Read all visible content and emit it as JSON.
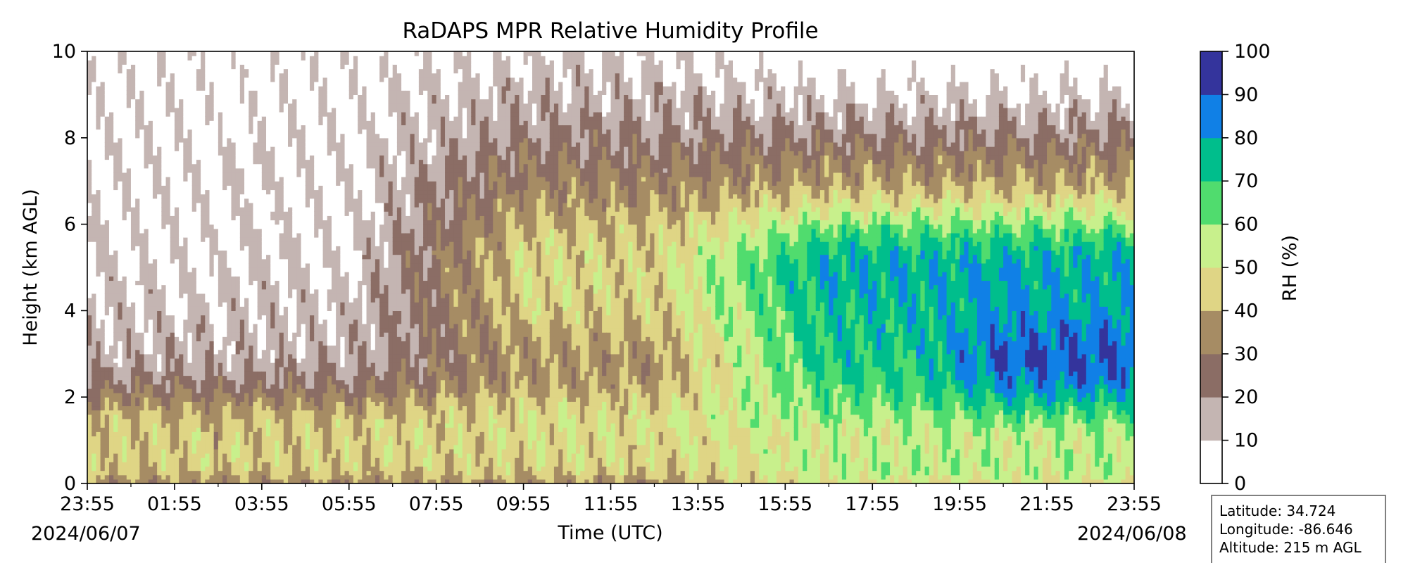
{
  "chart_data": {
    "type": "heatmap",
    "title": "RaDAPS MPR Relative Humidity Profile",
    "xlabel": "Time (UTC)",
    "ylabel": "Height (km AGL)",
    "xlim": [
      "2024-06-07 23:55",
      "2024-06-08 23:55"
    ],
    "ylim": [
      0,
      10
    ],
    "x_tick_labels": [
      "23:55",
      "01:55",
      "03:55",
      "05:55",
      "07:55",
      "09:55",
      "11:55",
      "13:55",
      "15:55",
      "17:55",
      "19:55",
      "21:55",
      "23:55"
    ],
    "y_tick_labels": [
      "0",
      "2",
      "4",
      "6",
      "8",
      "10"
    ],
    "date_start": "2024/06/07",
    "date_end": "2024/06/08",
    "colorbar": {
      "label": "RH (%)",
      "ticks": [
        "0",
        "10",
        "20",
        "30",
        "40",
        "50",
        "60",
        "70",
        "80",
        "90",
        "100"
      ],
      "levels": [
        0,
        10,
        20,
        30,
        40,
        50,
        60,
        70,
        80,
        90,
        100
      ],
      "colors": [
        "#ffffff",
        "#c4b5b2",
        "#8b6d65",
        "#a68c64",
        "#dfd585",
        "#c8f08c",
        "#50dc6e",
        "#00be8c",
        "#1080e6",
        "#34349c"
      ]
    },
    "grid": false,
    "rh_contours_approx": [
      {
        "time_hours": 0,
        "levels_by_height": "lowest ~30-40 below 1 km, 40-60 between 1-2 km, 30 at 2-3 km, 10-20 above 3.5 km"
      },
      {
        "time_hours": 8,
        "levels_by_height": "20-30 near surface, 40-50 at 3-6 km, 20 above 8 km"
      },
      {
        "time_hours": 12,
        "levels_by_height": "30 near surface, 40-60 at 2-7 km, 20-30 above 8 km"
      },
      {
        "time_hours": 18,
        "levels_by_height": "40 near surface, 60-80 at 1-4 km, 60-80 at 5-6 km, 30-40 above 8 km"
      },
      {
        "time_hours": 22,
        "levels_by_height": "40-50 near surface, 80-100 at 1.5-4 km, 70-80 at 4-6 km, 40 at 7-8 km, 20-30 above 8 km"
      }
    ],
    "legend_placement": "colorbar-right"
  },
  "info_box": {
    "latitude": "Latitude: 34.724",
    "longitude": "Longitude: -86.646",
    "altitude": "Altitude: 215 m AGL"
  }
}
